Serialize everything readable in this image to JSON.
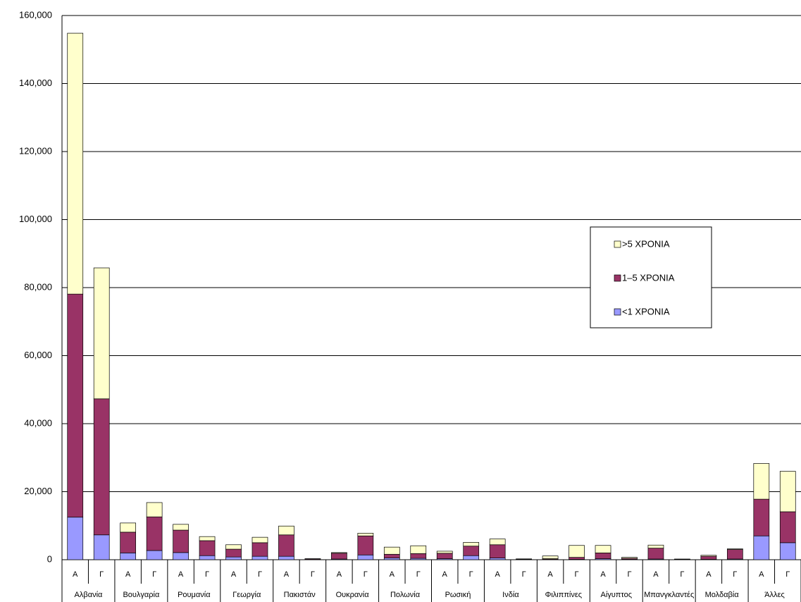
{
  "chart_data": {
    "type": "stacked_bar",
    "categories": [
      "Α",
      "Γ",
      "Α",
      "Γ",
      "Α",
      "Γ",
      "Α",
      "Γ",
      "Α",
      "Γ",
      "Α",
      "Γ",
      "Α",
      "Γ",
      "Α",
      "Γ",
      "Α",
      "Γ",
      "Α",
      "Γ",
      "Α",
      "Γ",
      "Α",
      "Γ",
      "Α",
      "Γ",
      "Α",
      "Γ"
    ],
    "category_groups": [
      "Αλβανία",
      "Βουλγαρία",
      "Ρουμανία",
      "Γεωργία",
      "Πακιστάν",
      "Ουκρανία",
      "Πολωνία",
      "Ρωσική",
      "Ινδία",
      "Φιλιππίνες",
      "Αίγυπτος",
      "Μπανγκλαντές",
      "Μολδαβία",
      "Άλλες"
    ],
    "series": [
      {
        "name": "<1 ΧΡΟΝΙΑ",
        "color": "#9999ff",
        "values": [
          12500,
          7300,
          2000,
          2700,
          2100,
          1200,
          800,
          1000,
          1000,
          50,
          200,
          1400,
          500,
          400,
          300,
          1200,
          500,
          50,
          100,
          100,
          300,
          100,
          200,
          50,
          100,
          200,
          7000,
          5000
        ]
      },
      {
        "name": "1–5 ΧΡΟΝΙΑ",
        "color": "#993366",
        "values": [
          65600,
          40000,
          6100,
          9900,
          6600,
          4400,
          2300,
          4000,
          6300,
          200,
          1700,
          5600,
          1100,
          1400,
          1600,
          2800,
          3900,
          150,
          200,
          600,
          1700,
          300,
          3200,
          100,
          900,
          2800,
          10800,
          9100
        ]
      },
      {
        "name": ">5 ΧΡΟΝΙΑ",
        "color": "#ffffcc",
        "values": [
          76700,
          38500,
          2700,
          4200,
          1700,
          1200,
          1300,
          1600,
          2600,
          50,
          200,
          800,
          2100,
          2300,
          600,
          1100,
          1700,
          50,
          800,
          3500,
          2200,
          300,
          900,
          50,
          300,
          200,
          10500,
          11900
        ]
      }
    ],
    "ylim": [
      0,
      160000
    ],
    "yticks": [
      0,
      {
        "value": 20000,
        "label": "20,000"
      },
      {
        "value": 40000,
        "label": "40,000"
      },
      {
        "value": 60000,
        "label": "60,000"
      },
      {
        "value": 80000,
        "label": "80,000"
      },
      {
        "value": 100000,
        "label": "100,000"
      },
      {
        "value": 120000,
        "label": "120,000"
      },
      {
        "value": 140000,
        "label": "140,000"
      },
      {
        "value": 160000,
        "label": "160,000"
      }
    ],
    "grid": true,
    "legend": "right"
  }
}
